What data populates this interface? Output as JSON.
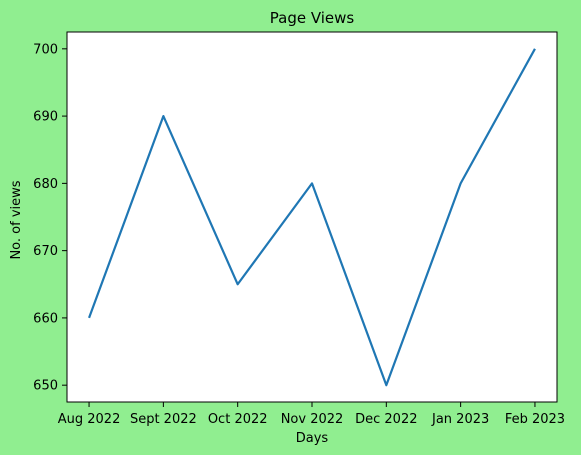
{
  "chart_data": {
    "type": "line",
    "title": "Page Views",
    "xlabel": "Days",
    "ylabel": "No. of views",
    "categories": [
      "Aug 2022",
      "Sept 2022",
      "Oct 2022",
      "Nov 2022",
      "Dec 2022",
      "Jan 2023",
      "Feb 2023"
    ],
    "series": [
      {
        "values": [
          660,
          690,
          665,
          680,
          650,
          680,
          700
        ]
      }
    ],
    "ylim": [
      647.5,
      702.5
    ],
    "yticks": [
      650,
      660,
      670,
      680,
      690,
      700
    ],
    "grid": false,
    "legend": "none",
    "colors": {
      "figure_background": "#90ee90",
      "plot_background": "#ffffff",
      "line": "#1f77b4",
      "axes": "#000000"
    }
  }
}
